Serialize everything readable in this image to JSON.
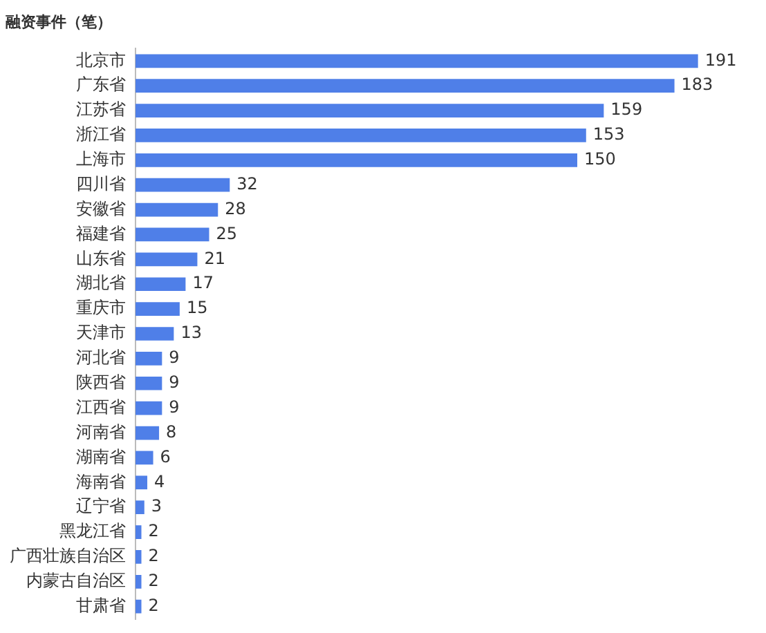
{
  "chart_data": {
    "type": "bar",
    "orientation": "horizontal",
    "title": "融资事件（笔）",
    "categories": [
      "北京市",
      "广东省",
      "江苏省",
      "浙江省",
      "上海市",
      "四川省",
      "安徽省",
      "福建省",
      "山东省",
      "湖北省",
      "重庆市",
      "天津市",
      "河北省",
      "陕西省",
      "江西省",
      "河南省",
      "湖南省",
      "海南省",
      "辽宁省",
      "黑龙江省",
      "广西壮族自治区",
      "内蒙古自治区",
      "甘肃省"
    ],
    "values": [
      191,
      183,
      159,
      153,
      150,
      32,
      28,
      25,
      21,
      17,
      15,
      13,
      9,
      9,
      9,
      8,
      6,
      4,
      3,
      2,
      2,
      2,
      2
    ],
    "color": "#4f7fe8",
    "data_labels": true,
    "legend": false
  }
}
